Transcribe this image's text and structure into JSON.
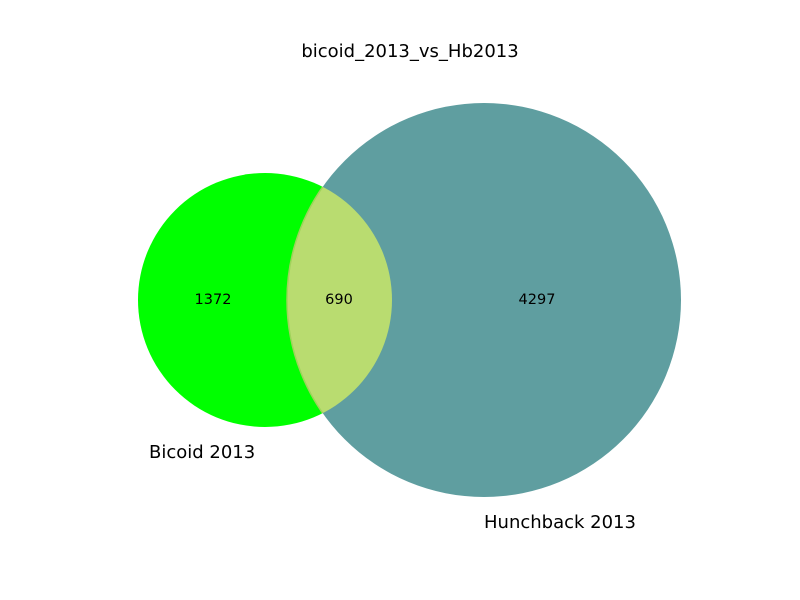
{
  "chart_data": {
    "type": "venn",
    "title": "bicoid_2013_vs_Hb2013",
    "sets": [
      {
        "name": "Bicoid 2013",
        "only": 1372,
        "color": "#00ff00"
      },
      {
        "name": "Hunchback 2013",
        "only": 4297,
        "color": "#5f9ea0"
      }
    ],
    "intersection": {
      "value": 690,
      "color": "#b9dc70"
    }
  }
}
